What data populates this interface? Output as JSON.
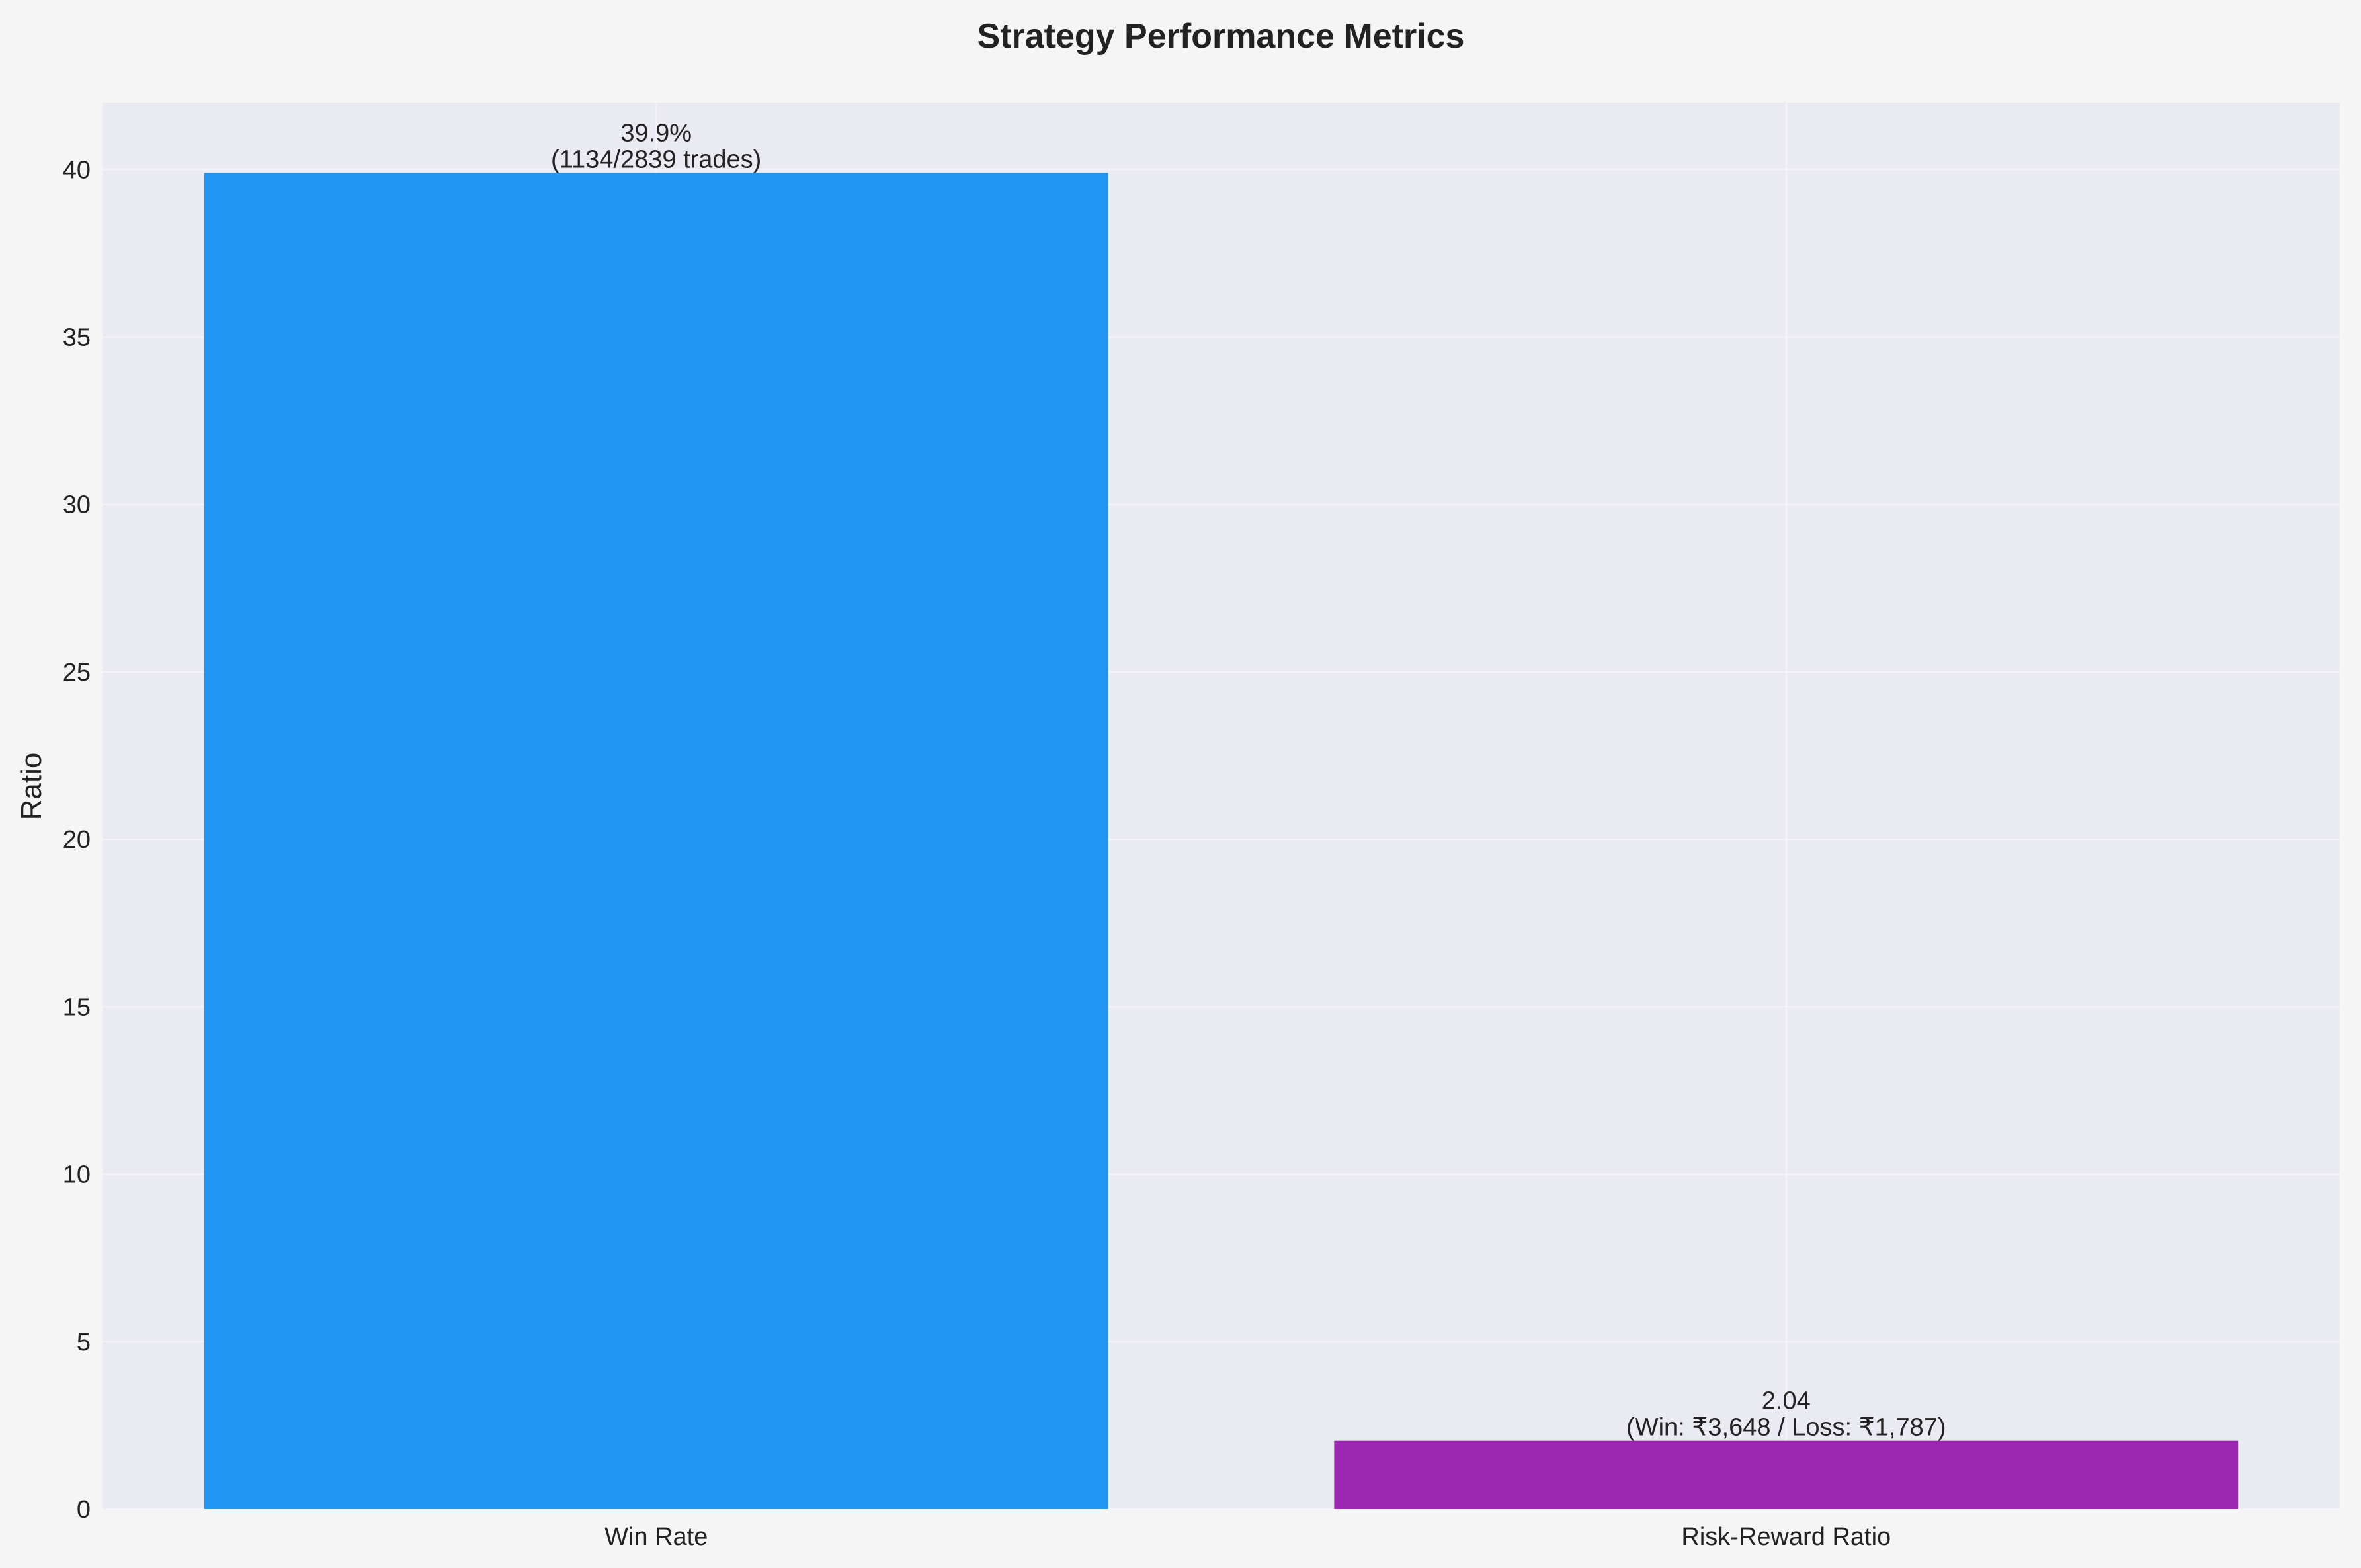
{
  "chart_data": {
    "type": "bar",
    "title": "Strategy Performance Metrics",
    "xlabel": "",
    "ylabel": "Ratio",
    "categories": [
      "Win Rate",
      "Risk-Reward Ratio"
    ],
    "values": [
      39.9,
      2.04
    ],
    "bar_labels": [
      [
        "39.9%",
        "(1134/2839 trades)"
      ],
      [
        "2.04",
        "(Win: ₹3,648 / Loss: ₹1,787)"
      ]
    ],
    "colors": [
      "#2196f3",
      "#9c27b0"
    ],
    "ylim": [
      0,
      42
    ],
    "yticks": [
      0,
      5,
      10,
      15,
      20,
      25,
      30,
      35,
      40
    ],
    "grid": true,
    "legend": "none"
  }
}
